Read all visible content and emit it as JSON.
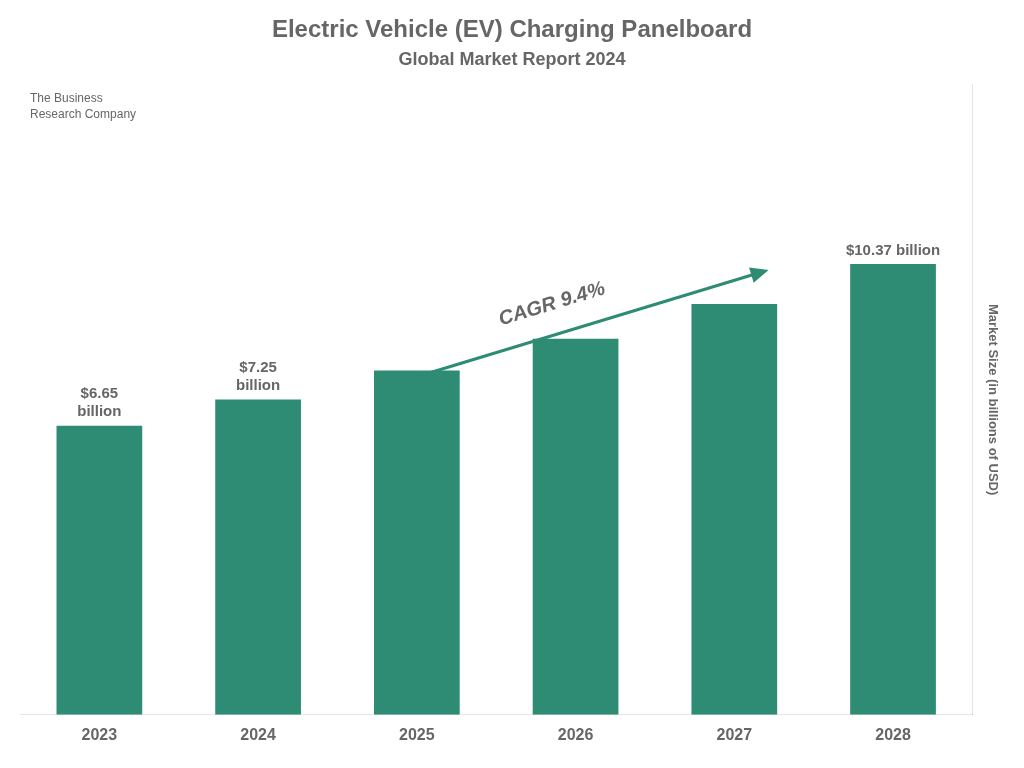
{
  "chart_data": {
    "type": "bar",
    "title": "Electric Vehicle (EV) Charging Panelboard",
    "subtitle": "Global Market Report 2024",
    "categories": [
      "2023",
      "2024",
      "2025",
      "2026",
      "2027",
      "2028"
    ],
    "values": [
      6.65,
      7.25,
      7.92,
      8.65,
      9.45,
      10.37
    ],
    "value_labels": [
      "$6.65\nbillion",
      "$7.25\nbillion",
      null,
      null,
      null,
      "$10.37 billion"
    ],
    "color": "#2e8b74",
    "ylabel": "Market Size (in billions of USD)",
    "ylim": [
      0,
      14.5
    ],
    "grid": false,
    "tick_labels": "x",
    "annotations": [
      "CAGR 9.4%",
      "The Business",
      "Research Company"
    ]
  }
}
